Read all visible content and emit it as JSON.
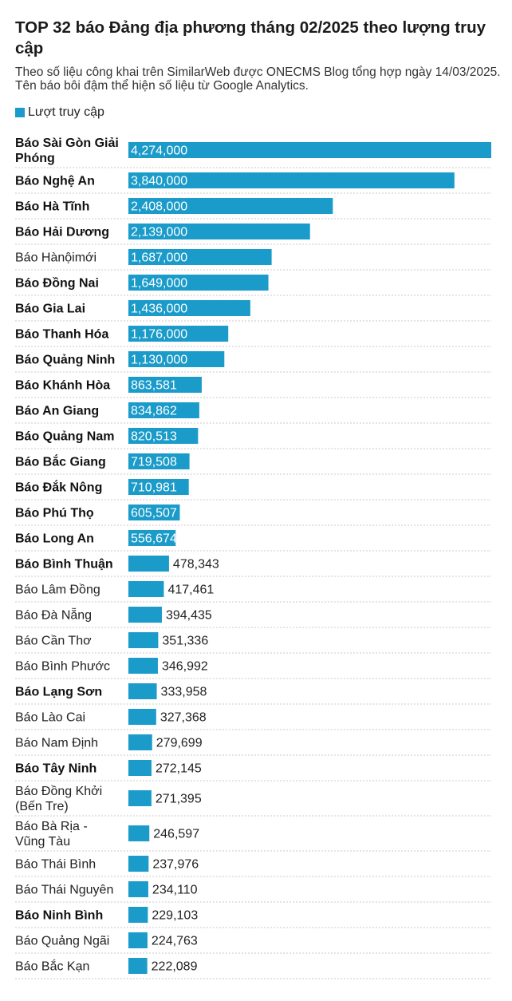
{
  "title": "TOP 32 báo Đảng địa phương tháng 02/2025 theo lượng truy cập",
  "subtitle": "Theo số liệu công khai trên SimilarWeb được ONECMS Blog tổng hợp ngày 14/03/2025. Tên báo bôi đậm thể hiện số liệu từ Google Analytics.",
  "colors": {
    "bar": "#1a9bca",
    "separator": "#c8c8c8"
  },
  "chart_data": {
    "type": "bar",
    "orientation": "horizontal",
    "grid": false,
    "legend_position": "top-left",
    "series": [
      {
        "name": "Lượt truy cập",
        "values": [
          4274000,
          3840000,
          2408000,
          2139000,
          1687000,
          1649000,
          1436000,
          1176000,
          1130000,
          863581,
          834862,
          820513,
          719508,
          710981,
          605507,
          556674,
          478343,
          417461,
          394435,
          351336,
          346992,
          333958,
          327368,
          279699,
          272145,
          271395,
          246597,
          237976,
          234110,
          229103,
          224763,
          222089
        ]
      }
    ],
    "categories": [
      "Báo Sài Gòn Giải Phóng",
      "Báo Nghệ An",
      "Báo Hà Tĩnh",
      "Báo Hải Dương",
      "Báo Hànộimới",
      "Báo Đồng Nai",
      "Báo Gia Lai",
      "Báo Thanh Hóa",
      "Báo Quảng Ninh",
      "Báo Khánh Hòa",
      "Báo An Giang",
      "Báo Quảng Nam",
      "Báo Bắc Giang",
      "Báo Đắk Nông",
      "Báo Phú Thọ",
      "Báo Long An",
      "Báo Bình Thuận",
      "Báo Lâm Đồng",
      "Báo Đà Nẵng",
      "Báo Cần Thơ",
      "Báo Bình Phước",
      "Báo Lạng Sơn",
      "Báo Lào Cai",
      "Báo Nam Định",
      "Báo Tây Ninh",
      "Báo Đồng Khởi (Bến Tre)",
      "Báo Bà Rịa - Vũng Tàu",
      "Báo Thái Bình",
      "Báo Thái Nguyên",
      "Báo Ninh Bình",
      "Báo Quảng Ngãi",
      "Báo Bắc Kạn"
    ],
    "category_lines": [
      [
        "Báo Sài Gòn Giải",
        "Phóng"
      ],
      [
        "Báo Nghệ An"
      ],
      [
        "Báo Hà Tĩnh"
      ],
      [
        "Báo Hải Dương"
      ],
      [
        "Báo Hànộimới"
      ],
      [
        "Báo Đồng Nai"
      ],
      [
        "Báo Gia Lai"
      ],
      [
        "Báo Thanh Hóa"
      ],
      [
        "Báo Quảng Ninh"
      ],
      [
        "Báo Khánh Hòa"
      ],
      [
        "Báo An Giang"
      ],
      [
        "Báo Quảng Nam"
      ],
      [
        "Báo Bắc Giang"
      ],
      [
        "Báo Đắk Nông"
      ],
      [
        "Báo Phú Thọ"
      ],
      [
        "Báo Long An"
      ],
      [
        "Báo Bình Thuận"
      ],
      [
        "Báo Lâm Đồng"
      ],
      [
        "Báo Đà Nẵng"
      ],
      [
        "Báo Cần Thơ"
      ],
      [
        "Báo Bình Phước"
      ],
      [
        "Báo Lạng Sơn"
      ],
      [
        "Báo Lào Cai"
      ],
      [
        "Báo Nam Định"
      ],
      [
        "Báo Tây Ninh"
      ],
      [
        "Báo Đồng Khởi",
        "(Bến Tre)"
      ],
      [
        "Báo Bà Rịa -",
        "Vũng Tàu"
      ],
      [
        "Báo Thái Bình"
      ],
      [
        "Báo Thái Nguyên"
      ],
      [
        "Báo Ninh Bình"
      ],
      [
        "Báo Quảng Ngãi"
      ],
      [
        "Báo Bắc Kạn"
      ]
    ],
    "bold": [
      true,
      true,
      true,
      true,
      false,
      true,
      true,
      true,
      true,
      true,
      true,
      true,
      true,
      true,
      true,
      true,
      true,
      false,
      false,
      false,
      false,
      true,
      false,
      false,
      true,
      false,
      false,
      false,
      false,
      true,
      false,
      false
    ],
    "value_labels": [
      "4,274,000",
      "3,840,000",
      "2,408,000",
      "2,139,000",
      "1,687,000",
      "1,649,000",
      "1,436,000",
      "1,176,000",
      "1,130,000",
      "863,581",
      "834,862",
      "820,513",
      "719,508",
      "710,981",
      "605,507",
      "556,674",
      "478,343",
      "417,461",
      "394,435",
      "351,336",
      "346,992",
      "333,958",
      "327,368",
      "279,699",
      "272,145",
      "271,395",
      "246,597",
      "237,976",
      "234,110",
      "229,103",
      "224,763",
      "222,089"
    ],
    "xlim": [
      0,
      4274000
    ]
  }
}
